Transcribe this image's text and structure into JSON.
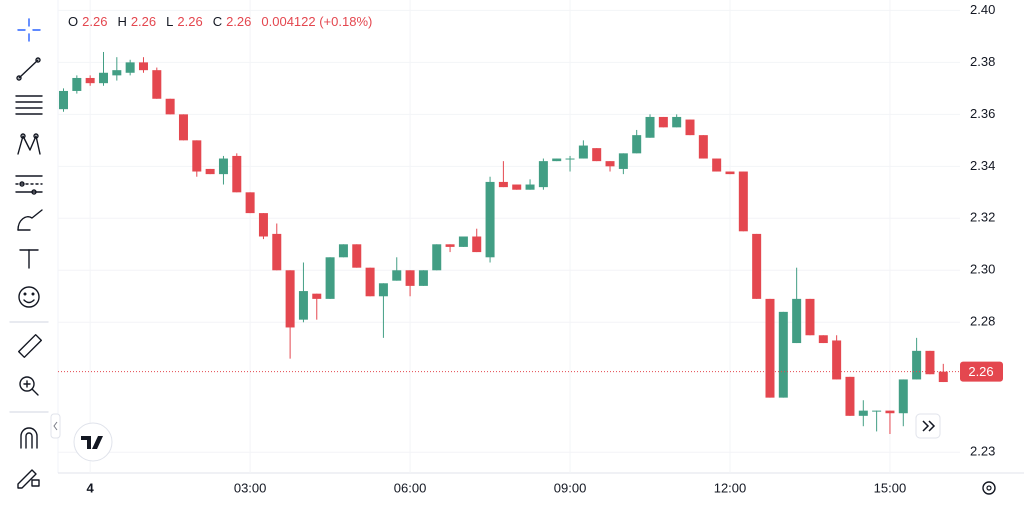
{
  "chart_data": {
    "type": "candlestick",
    "legend": {
      "labels": [
        "O",
        "H",
        "L",
        "C"
      ],
      "values": [
        "2.26",
        "2.26",
        "2.26",
        "2.26"
      ],
      "change": "0.004122 (+0.18%)"
    },
    "categories": [
      null,
      null,
      "4",
      null,
      null,
      null,
      null,
      null,
      null,
      null,
      null,
      null,
      null,
      null,
      "03:00",
      null,
      null,
      null,
      null,
      null,
      null,
      null,
      null,
      null,
      null,
      null,
      "06:00",
      null,
      null,
      null,
      null,
      null,
      null,
      null,
      null,
      null,
      null,
      null,
      "09:00",
      null,
      null,
      null,
      null,
      null,
      null,
      null,
      null,
      null,
      null,
      null,
      "12:00",
      null,
      null,
      null,
      null,
      null,
      null,
      null,
      null,
      null,
      null,
      null,
      "15:00",
      null,
      null,
      null,
      null
    ],
    "open": [
      2.362,
      2.369,
      2.374,
      2.372,
      2.375,
      2.376,
      2.38,
      2.377,
      2.366,
      2.36,
      2.35,
      2.339,
      2.337,
      2.344,
      2.33,
      2.322,
      2.314,
      2.3,
      2.281,
      2.291,
      2.289,
      2.305,
      2.31,
      2.301,
      2.29,
      2.296,
      2.3,
      2.294,
      2.3,
      2.31,
      2.309,
      2.313,
      2.305,
      2.334,
      2.333,
      2.331,
      2.332,
      2.342,
      2.343,
      2.343,
      2.347,
      2.342,
      2.339,
      2.345,
      2.351,
      2.359,
      2.355,
      2.358,
      2.352,
      2.343,
      2.338,
      2.338,
      2.314,
      2.289,
      2.251,
      2.272,
      2.289,
      2.275,
      2.273,
      2.259,
      2.244,
      2.246,
      2.246,
      2.245,
      2.258,
      2.269,
      2.261
    ],
    "high": [
      2.37,
      2.375,
      2.375,
      2.384,
      2.382,
      2.381,
      2.382,
      2.378,
      2.366,
      2.36,
      2.35,
      2.339,
      2.344,
      2.345,
      2.33,
      2.322,
      2.318,
      2.3,
      2.303,
      2.291,
      2.305,
      2.31,
      2.31,
      2.301,
      2.295,
      2.305,
      2.3,
      2.3,
      2.31,
      2.31,
      2.313,
      2.316,
      2.336,
      2.342,
      2.333,
      2.335,
      2.343,
      2.343,
      2.344,
      2.35,
      2.347,
      2.342,
      2.345,
      2.354,
      2.36,
      2.359,
      2.36,
      2.358,
      2.352,
      2.343,
      2.338,
      2.338,
      2.314,
      2.289,
      2.284,
      2.301,
      2.289,
      2.275,
      2.275,
      2.259,
      2.25,
      2.246,
      2.246,
      2.258,
      2.274,
      2.269,
      2.264
    ],
    "low": [
      2.361,
      2.368,
      2.371,
      2.371,
      2.373,
      2.375,
      2.376,
      2.366,
      2.36,
      2.35,
      2.336,
      2.337,
      2.333,
      2.33,
      2.322,
      2.312,
      2.3,
      2.266,
      2.28,
      2.281,
      2.289,
      2.305,
      2.301,
      2.29,
      2.274,
      2.296,
      2.29,
      2.294,
      2.3,
      2.307,
      2.309,
      2.307,
      2.303,
      2.332,
      2.331,
      2.331,
      2.331,
      2.342,
      2.338,
      2.343,
      2.342,
      2.338,
      2.337,
      2.345,
      2.351,
      2.355,
      2.355,
      2.352,
      2.343,
      2.338,
      2.337,
      2.315,
      2.289,
      2.251,
      2.251,
      2.272,
      2.275,
      2.272,
      2.258,
      2.244,
      2.24,
      2.238,
      2.237,
      2.24,
      2.258,
      2.26,
      2.257
    ],
    "close": [
      2.369,
      2.374,
      2.372,
      2.376,
      2.377,
      2.38,
      2.377,
      2.366,
      2.36,
      2.35,
      2.338,
      2.337,
      2.343,
      2.33,
      2.322,
      2.313,
      2.3,
      2.278,
      2.292,
      2.289,
      2.305,
      2.31,
      2.301,
      2.29,
      2.295,
      2.3,
      2.294,
      2.3,
      2.31,
      2.309,
      2.313,
      2.307,
      2.334,
      2.332,
      2.331,
      2.333,
      2.342,
      2.343,
      2.343,
      2.348,
      2.342,
      2.34,
      2.345,
      2.352,
      2.359,
      2.355,
      2.359,
      2.352,
      2.343,
      2.338,
      2.337,
      2.315,
      2.289,
      2.251,
      2.284,
      2.289,
      2.275,
      2.272,
      2.258,
      2.244,
      2.246,
      2.246,
      2.245,
      2.258,
      2.269,
      2.26,
      2.257
    ],
    "up_color": "#429e84",
    "down_color": "#e4474f",
    "ylim": [
      2.222,
      2.404
    ],
    "yticks": [
      {
        "value": 2.4,
        "label": "2.40"
      },
      2.38,
      2.36,
      2.34,
      2.32,
      {
        "value": 2.3,
        "label": "2.30"
      },
      2.28,
      2.23
    ],
    "last_price": {
      "value": 2.261,
      "label": "2.26"
    },
    "grid": true
  }
}
